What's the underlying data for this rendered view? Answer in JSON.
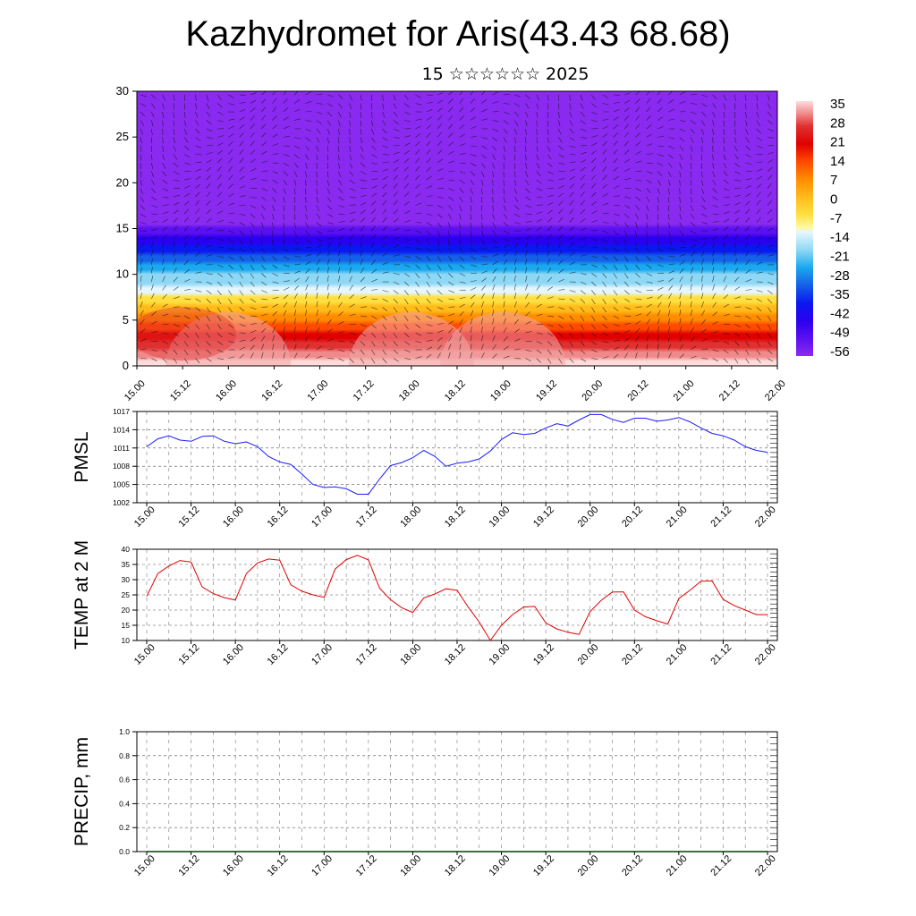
{
  "title": "Kazhydromet for Aris(43.43 68.68)",
  "subtitle": "15 ☆☆☆☆☆☆ 2025",
  "time_ticks": [
    "15.00",
    "15.12",
    "16.00",
    "16.12",
    "17.00",
    "17.12",
    "18.00",
    "18.12",
    "19.00",
    "19.12",
    "20.00",
    "20.12",
    "21.00",
    "21.12",
    "22.00"
  ],
  "colors": {
    "pmsl_line": "#1a1aff",
    "temp_line": "#e00000",
    "precip_line": "#004400",
    "grid": "#000000"
  },
  "chart_data": [
    {
      "type": "heatmap",
      "name": "cross-section",
      "ylim": [
        0,
        30
      ],
      "yticks": [
        "0",
        "5",
        "10",
        "15",
        "20",
        "25",
        "30"
      ],
      "x_range": [
        0,
        84
      ],
      "has_wind_barbs": true,
      "colorbar": {
        "labels": [
          "35",
          "28",
          "21",
          "14",
          "7",
          "0",
          "-7",
          "-14",
          "-21",
          "-28",
          "-35",
          "-42",
          "-49",
          "-56"
        ],
        "stops": [
          {
            "v": 38,
            "c": "#ffdcdc"
          },
          {
            "v": 33,
            "c": "#f08a8a"
          },
          {
            "v": 28,
            "c": "#e03030"
          },
          {
            "v": 21,
            "c": "#e00000"
          },
          {
            "v": 14,
            "c": "#ff4a00"
          },
          {
            "v": 7,
            "c": "#ff8c00"
          },
          {
            "v": 0,
            "c": "#ffbb1a"
          },
          {
            "v": -7,
            "c": "#ffe040"
          },
          {
            "v": -12,
            "c": "#fff8a0"
          },
          {
            "v": -14,
            "c": "#e6f6ff"
          },
          {
            "v": -21,
            "c": "#8fd8f5"
          },
          {
            "v": -28,
            "c": "#1aa8ee"
          },
          {
            "v": -35,
            "c": "#1560e8"
          },
          {
            "v": -42,
            "c": "#0a18f0"
          },
          {
            "v": -49,
            "c": "#2a00f0"
          },
          {
            "v": -56,
            "c": "#5a10f0"
          },
          {
            "v": -63,
            "c": "#8a2af0"
          }
        ]
      }
    },
    {
      "type": "line",
      "name": "PMSL",
      "ylabel": "PMSL",
      "ylim": [
        1002,
        1017
      ],
      "yticks": [
        "1002",
        "1005",
        "1008",
        "1011",
        "1014",
        "1017"
      ],
      "x": [
        0,
        3,
        6,
        9,
        12,
        15,
        18,
        21,
        24,
        27,
        30,
        33,
        36,
        39,
        42,
        45,
        48,
        51,
        54,
        57,
        60,
        63,
        66,
        69,
        72,
        75,
        78,
        81,
        84
      ],
      "values": [
        1011.2,
        1012.5,
        1013.0,
        1012.3,
        1012.1,
        1012.9,
        1013.0,
        1012.1,
        1011.7,
        1012.0,
        1011.2,
        1009.6,
        1008.7,
        1008.3,
        1006.7,
        1005.0,
        1004.5,
        1004.6,
        1004.3,
        1003.4,
        1003.4,
        1005.9,
        1008.1,
        1008.6,
        1009.4,
        1010.6,
        1009.6,
        1008.0,
        1008.5
      ],
      "x2": [
        87,
        90,
        93,
        96,
        99,
        102,
        105,
        108,
        111,
        114,
        117,
        120,
        123,
        126,
        129,
        132,
        135,
        138,
        141,
        144,
        147,
        150,
        153,
        156,
        159,
        162,
        165,
        168
      ],
      "values2": [
        1008.7,
        1009.2,
        1010.5,
        1012.4,
        1013.5,
        1013.2,
        1013.4,
        1014.3,
        1015.0,
        1014.6,
        1015.6,
        1016.5,
        1016.5,
        1015.7,
        1015.2,
        1015.9,
        1015.9,
        1015.4,
        1015.6,
        1016.0,
        1015.3,
        1014.3,
        1013.4,
        1013.0,
        1012.3,
        1011.2,
        1010.6,
        1010.3
      ]
    },
    {
      "type": "line",
      "name": "TEMP at 2 M",
      "ylabel": "TEMP at 2 M",
      "ylim": [
        10,
        40
      ],
      "yticks": [
        "10",
        "15",
        "20",
        "25",
        "30",
        "35",
        "40"
      ],
      "x": [
        0,
        3,
        6,
        9,
        12,
        15,
        18,
        21,
        24,
        27,
        30,
        33,
        36,
        39,
        42,
        45,
        48,
        51,
        54,
        57,
        60,
        63,
        66,
        69,
        72,
        75,
        78,
        81,
        84,
        87,
        90,
        93,
        96,
        99,
        102,
        105,
        108,
        111,
        114,
        117,
        120,
        123,
        126,
        129,
        132,
        135,
        138,
        141,
        144,
        147,
        150,
        153,
        156,
        159,
        162,
        165,
        168
      ],
      "values": [
        24.5,
        32.0,
        34.5,
        36.3,
        35.8,
        27.6,
        25.4,
        24.1,
        23.3,
        32.0,
        35.5,
        36.8,
        36.4,
        28.3,
        26.2,
        25.0,
        24.2,
        33.5,
        36.6,
        38.0,
        36.5,
        27.2,
        23.4,
        20.8,
        19.2,
        24.0,
        25.3,
        27.0,
        26.5,
        21.0,
        16.0,
        10.0,
        15.0,
        18.5,
        21.0,
        21.2,
        15.8,
        13.8,
        12.7,
        12.0,
        19.5,
        23.2,
        25.9,
        26.0,
        20.0,
        17.8,
        16.5,
        15.4,
        23.8,
        26.5,
        29.5,
        29.6,
        23.5,
        21.5,
        20.0,
        18.5,
        18.5
      ]
    },
    {
      "type": "line",
      "name": "PRECIP, mm",
      "ylabel": "PRECIP, mm",
      "ylim": [
        0,
        1
      ],
      "yticks": [
        "0.0",
        "0.2",
        "0.4",
        "0.6",
        "0.8",
        "1.0"
      ],
      "x": [
        0,
        84,
        168
      ],
      "values": [
        0,
        0,
        0
      ]
    }
  ]
}
